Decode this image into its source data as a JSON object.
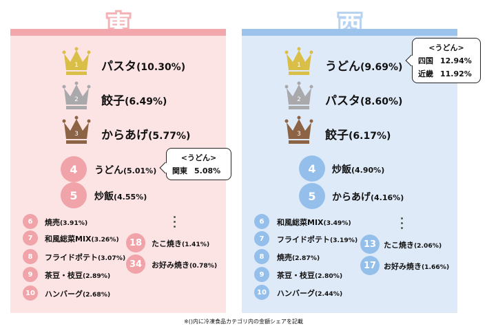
{
  "colors": {
    "east_accent": "#f1a7ab",
    "east_bg": "#fce3e4",
    "west_accent": "#9cc3ec",
    "west_bg": "#dfeaf8",
    "gold": "#d9bf47",
    "silver": "#a9a9ab",
    "bronze": "#8c6344"
  },
  "east": {
    "title": "東",
    "top3": [
      {
        "rank": "1",
        "name": "パスタ",
        "share": "(10.30%)",
        "icon": "gold-crown"
      },
      {
        "rank": "2",
        "name": "餃子",
        "share": "(6.49%)",
        "icon": "silver-crown"
      },
      {
        "rank": "3",
        "name": "からあげ",
        "share": "(5.77%)",
        "icon": "bronze-crown"
      }
    ],
    "mid": [
      {
        "rank": "4",
        "name": "うどん",
        "share": "(5.01%)"
      },
      {
        "rank": "5",
        "name": "炒飯",
        "share": "(4.55%)"
      }
    ],
    "small": [
      {
        "rank": "6",
        "name": "焼売",
        "share": "(3.91%)"
      },
      {
        "rank": "7",
        "name": "和風総菜MIX",
        "share": "(3.26%)"
      },
      {
        "rank": "8",
        "name": "フライドポテト",
        "share": "(3.07%)"
      },
      {
        "rank": "9",
        "name": "茶豆・枝豆",
        "share": "(2.89%)"
      },
      {
        "rank": "10",
        "name": "ハンバーグ",
        "share": "(2.68%)"
      }
    ],
    "extra": [
      {
        "rank": "18",
        "name": "たこ焼き",
        "share": "(1.41%)"
      },
      {
        "rank": "34",
        "name": "お好み焼き",
        "share": "(0.78%)"
      }
    ],
    "callout": {
      "heading": "<うどん>",
      "rows": [
        {
          "region": "関東",
          "value": "5.08%"
        }
      ]
    }
  },
  "west": {
    "title": "西",
    "top3": [
      {
        "rank": "1",
        "name": "うどん",
        "share": "(9.69%)",
        "icon": "gold-crown"
      },
      {
        "rank": "2",
        "name": "パスタ",
        "share": "(8.60%)",
        "icon": "silver-crown"
      },
      {
        "rank": "3",
        "name": "餃子",
        "share": "(6.17%)",
        "icon": "bronze-crown"
      }
    ],
    "mid": [
      {
        "rank": "4",
        "name": "炒飯",
        "share": "(4.90%)"
      },
      {
        "rank": "5",
        "name": "からあげ",
        "share": "(4.16%)"
      }
    ],
    "small": [
      {
        "rank": "6",
        "name": "和風総菜MIX",
        "share": "(3.49%)"
      },
      {
        "rank": "7",
        "name": "フライドポテト",
        "share": "(3.19%)"
      },
      {
        "rank": "8",
        "name": "焼売",
        "share": "(2.87%)"
      },
      {
        "rank": "9",
        "name": "茶豆・枝豆",
        "share": "(2.80%)"
      },
      {
        "rank": "10",
        "name": "ハンバーグ",
        "share": "(2.44%)"
      }
    ],
    "extra": [
      {
        "rank": "13",
        "name": "たこ焼き",
        "share": "(2.06%)"
      },
      {
        "rank": "17",
        "name": "お好み焼き",
        "share": "(1.66%)"
      }
    ],
    "callout": {
      "heading": "<うどん>",
      "rows": [
        {
          "region": "四国",
          "value": "12.94%"
        },
        {
          "region": "近畿",
          "value": "11.92%"
        }
      ]
    }
  },
  "footnote": "※()内に冷凍食品カテゴリ内の金額シェアを記載"
}
